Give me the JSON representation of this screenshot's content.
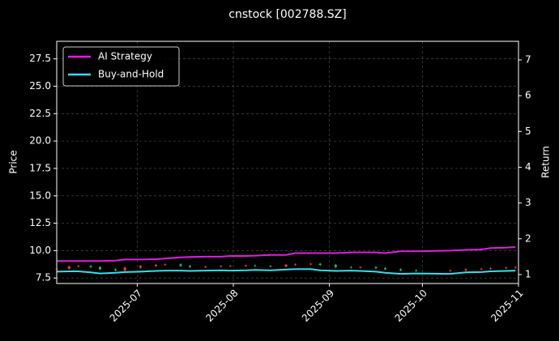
{
  "chart_data": {
    "type": "candlestick",
    "title": "cnstock [002788.SZ]",
    "y_label": "Price",
    "y2_label": "Return",
    "up_color": "#ff3b3b",
    "down_color": "#1fbf5f",
    "grid": true,
    "legend": "upper left",
    "x": [
      "2025-06-05",
      "2025-06-09",
      "2025-06-12",
      "2025-06-16",
      "2025-06-19",
      "2025-06-24",
      "2025-06-27",
      "2025-07-02",
      "2025-07-07",
      "2025-07-10",
      "2025-07-15",
      "2025-07-18",
      "2025-07-23",
      "2025-07-28",
      "2025-07-31",
      "2025-08-05",
      "2025-08-08",
      "2025-08-13",
      "2025-08-18",
      "2025-08-21",
      "2025-08-26",
      "2025-08-29",
      "2025-09-03",
      "2025-09-08",
      "2025-09-11",
      "2025-09-16",
      "2025-09-19",
      "2025-09-24",
      "2025-09-29",
      "2025-10-10",
      "2025-10-15",
      "2025-10-20",
      "2025-10-23",
      "2025-10-28",
      "2025-10-31"
    ],
    "open": [
      8.3,
      8.35,
      8.55,
      8.6,
      8.5,
      8.3,
      8.2,
      8.45,
      8.6,
      8.7,
      8.75,
      8.6,
      8.5,
      8.55,
      8.6,
      8.6,
      8.65,
      8.6,
      8.55,
      8.7,
      8.75,
      8.8,
      8.7,
      8.5,
      8.45,
      8.5,
      8.4,
      8.3,
      8.2,
      8.15,
      8.2,
      8.3,
      8.35,
      8.4,
      8.45
    ],
    "high": [
      8.43,
      8.63,
      8.68,
      8.68,
      8.58,
      8.38,
      8.53,
      8.68,
      8.78,
      8.83,
      8.83,
      8.68,
      8.63,
      8.68,
      8.68,
      8.73,
      8.73,
      8.68,
      8.78,
      8.83,
      8.88,
      8.88,
      8.78,
      8.58,
      8.58,
      8.58,
      8.48,
      8.38,
      8.28,
      8.28,
      8.38,
      8.43,
      8.48,
      8.53,
      8.58
    ],
    "low": [
      8.22,
      8.27,
      8.47,
      8.42,
      8.22,
      8.12,
      8.12,
      8.37,
      8.52,
      8.62,
      8.52,
      8.42,
      8.42,
      8.47,
      8.52,
      8.52,
      8.52,
      8.47,
      8.47,
      8.62,
      8.67,
      8.62,
      8.42,
      8.37,
      8.37,
      8.32,
      8.22,
      8.12,
      8.07,
      8.07,
      8.12,
      8.22,
      8.27,
      8.32,
      8.37
    ],
    "close": [
      8.35,
      8.55,
      8.6,
      8.5,
      8.3,
      8.2,
      8.45,
      8.6,
      8.7,
      8.75,
      8.6,
      8.5,
      8.55,
      8.6,
      8.6,
      8.65,
      8.6,
      8.55,
      8.7,
      8.75,
      8.8,
      8.7,
      8.5,
      8.45,
      8.5,
      8.4,
      8.3,
      8.2,
      8.15,
      8.2,
      8.3,
      8.35,
      8.4,
      8.45,
      8.5
    ],
    "series": [
      {
        "name": "AI Strategy",
        "color": "#e01ee0",
        "axis": "y2",
        "values": [
          1.38,
          1.38,
          1.38,
          1.38,
          1.38,
          1.39,
          1.42,
          1.42,
          1.43,
          1.45,
          1.48,
          1.49,
          1.5,
          1.5,
          1.52,
          1.52,
          1.53,
          1.55,
          1.55,
          1.6,
          1.6,
          1.6,
          1.6,
          1.62,
          1.62,
          1.62,
          1.6,
          1.65,
          1.65,
          1.67,
          1.69,
          1.7,
          1.74,
          1.75,
          1.77
        ]
      },
      {
        "name": "Buy-and-Hold",
        "color": "#2ee0f0",
        "axis": "y2",
        "values": [
          1.08,
          1.09,
          1.09,
          1.06,
          1.03,
          1.05,
          1.07,
          1.08,
          1.1,
          1.11,
          1.11,
          1.1,
          1.11,
          1.12,
          1.11,
          1.12,
          1.13,
          1.12,
          1.14,
          1.15,
          1.15,
          1.12,
          1.1,
          1.11,
          1.1,
          1.08,
          1.05,
          1.02,
          1.03,
          1.02,
          1.06,
          1.07,
          1.09,
          1.1,
          1.11
        ]
      }
    ],
    "xlim": [
      "2025-06-05",
      "2025-11-01"
    ],
    "xticks": [
      {
        "value": "2025-07-01",
        "label": "2025-07"
      },
      {
        "value": "2025-08-01",
        "label": "2025-08"
      },
      {
        "value": "2025-09-01",
        "label": "2025-09"
      },
      {
        "value": "2025-10-01",
        "label": "2025-10"
      },
      {
        "value": "2025-11-01",
        "label": "2025-11"
      }
    ],
    "ylim": [
      7.0,
      29.1
    ],
    "yticks": [
      7.5,
      {
        "value": 10.0,
        "label": "10.0"
      },
      12.5,
      {
        "value": 15.0,
        "label": "15.0"
      },
      17.5,
      {
        "value": 20.0,
        "label": "20.0"
      },
      22.5,
      {
        "value": 25.0,
        "label": "25.0"
      },
      27.5
    ],
    "y2lim": [
      0.75,
      7.52
    ],
    "y2ticks": [
      1,
      2,
      3,
      4,
      5,
      6,
      7
    ]
  }
}
